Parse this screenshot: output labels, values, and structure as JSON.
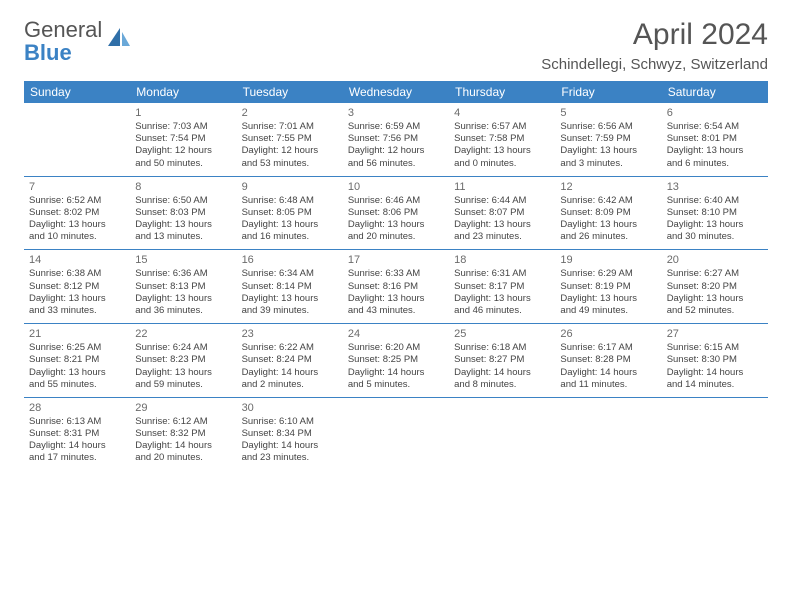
{
  "brand": {
    "line1": "General",
    "line2": "Blue"
  },
  "title": "April 2024",
  "location": "Schindellegi, Schwyz, Switzerland",
  "colors": {
    "header_bg": "#3b82c4",
    "header_text": "#ffffff",
    "text": "#444444",
    "title_text": "#555555",
    "border": "#3b82c4",
    "page_bg": "#ffffff"
  },
  "calendar": {
    "type": "table",
    "day_headers": [
      "Sunday",
      "Monday",
      "Tuesday",
      "Wednesday",
      "Thursday",
      "Friday",
      "Saturday"
    ],
    "header_fontsize": 12,
    "cell_fontsize": 9.5,
    "daynum_fontsize": 11,
    "weeks": [
      [
        null,
        {
          "n": "1",
          "sr": "Sunrise: 7:03 AM",
          "ss": "Sunset: 7:54 PM",
          "dl1": "Daylight: 12 hours",
          "dl2": "and 50 minutes."
        },
        {
          "n": "2",
          "sr": "Sunrise: 7:01 AM",
          "ss": "Sunset: 7:55 PM",
          "dl1": "Daylight: 12 hours",
          "dl2": "and 53 minutes."
        },
        {
          "n": "3",
          "sr": "Sunrise: 6:59 AM",
          "ss": "Sunset: 7:56 PM",
          "dl1": "Daylight: 12 hours",
          "dl2": "and 56 minutes."
        },
        {
          "n": "4",
          "sr": "Sunrise: 6:57 AM",
          "ss": "Sunset: 7:58 PM",
          "dl1": "Daylight: 13 hours",
          "dl2": "and 0 minutes."
        },
        {
          "n": "5",
          "sr": "Sunrise: 6:56 AM",
          "ss": "Sunset: 7:59 PM",
          "dl1": "Daylight: 13 hours",
          "dl2": "and 3 minutes."
        },
        {
          "n": "6",
          "sr": "Sunrise: 6:54 AM",
          "ss": "Sunset: 8:01 PM",
          "dl1": "Daylight: 13 hours",
          "dl2": "and 6 minutes."
        }
      ],
      [
        {
          "n": "7",
          "sr": "Sunrise: 6:52 AM",
          "ss": "Sunset: 8:02 PM",
          "dl1": "Daylight: 13 hours",
          "dl2": "and 10 minutes."
        },
        {
          "n": "8",
          "sr": "Sunrise: 6:50 AM",
          "ss": "Sunset: 8:03 PM",
          "dl1": "Daylight: 13 hours",
          "dl2": "and 13 minutes."
        },
        {
          "n": "9",
          "sr": "Sunrise: 6:48 AM",
          "ss": "Sunset: 8:05 PM",
          "dl1": "Daylight: 13 hours",
          "dl2": "and 16 minutes."
        },
        {
          "n": "10",
          "sr": "Sunrise: 6:46 AM",
          "ss": "Sunset: 8:06 PM",
          "dl1": "Daylight: 13 hours",
          "dl2": "and 20 minutes."
        },
        {
          "n": "11",
          "sr": "Sunrise: 6:44 AM",
          "ss": "Sunset: 8:07 PM",
          "dl1": "Daylight: 13 hours",
          "dl2": "and 23 minutes."
        },
        {
          "n": "12",
          "sr": "Sunrise: 6:42 AM",
          "ss": "Sunset: 8:09 PM",
          "dl1": "Daylight: 13 hours",
          "dl2": "and 26 minutes."
        },
        {
          "n": "13",
          "sr": "Sunrise: 6:40 AM",
          "ss": "Sunset: 8:10 PM",
          "dl1": "Daylight: 13 hours",
          "dl2": "and 30 minutes."
        }
      ],
      [
        {
          "n": "14",
          "sr": "Sunrise: 6:38 AM",
          "ss": "Sunset: 8:12 PM",
          "dl1": "Daylight: 13 hours",
          "dl2": "and 33 minutes."
        },
        {
          "n": "15",
          "sr": "Sunrise: 6:36 AM",
          "ss": "Sunset: 8:13 PM",
          "dl1": "Daylight: 13 hours",
          "dl2": "and 36 minutes."
        },
        {
          "n": "16",
          "sr": "Sunrise: 6:34 AM",
          "ss": "Sunset: 8:14 PM",
          "dl1": "Daylight: 13 hours",
          "dl2": "and 39 minutes."
        },
        {
          "n": "17",
          "sr": "Sunrise: 6:33 AM",
          "ss": "Sunset: 8:16 PM",
          "dl1": "Daylight: 13 hours",
          "dl2": "and 43 minutes."
        },
        {
          "n": "18",
          "sr": "Sunrise: 6:31 AM",
          "ss": "Sunset: 8:17 PM",
          "dl1": "Daylight: 13 hours",
          "dl2": "and 46 minutes."
        },
        {
          "n": "19",
          "sr": "Sunrise: 6:29 AM",
          "ss": "Sunset: 8:19 PM",
          "dl1": "Daylight: 13 hours",
          "dl2": "and 49 minutes."
        },
        {
          "n": "20",
          "sr": "Sunrise: 6:27 AM",
          "ss": "Sunset: 8:20 PM",
          "dl1": "Daylight: 13 hours",
          "dl2": "and 52 minutes."
        }
      ],
      [
        {
          "n": "21",
          "sr": "Sunrise: 6:25 AM",
          "ss": "Sunset: 8:21 PM",
          "dl1": "Daylight: 13 hours",
          "dl2": "and 55 minutes."
        },
        {
          "n": "22",
          "sr": "Sunrise: 6:24 AM",
          "ss": "Sunset: 8:23 PM",
          "dl1": "Daylight: 13 hours",
          "dl2": "and 59 minutes."
        },
        {
          "n": "23",
          "sr": "Sunrise: 6:22 AM",
          "ss": "Sunset: 8:24 PM",
          "dl1": "Daylight: 14 hours",
          "dl2": "and 2 minutes."
        },
        {
          "n": "24",
          "sr": "Sunrise: 6:20 AM",
          "ss": "Sunset: 8:25 PM",
          "dl1": "Daylight: 14 hours",
          "dl2": "and 5 minutes."
        },
        {
          "n": "25",
          "sr": "Sunrise: 6:18 AM",
          "ss": "Sunset: 8:27 PM",
          "dl1": "Daylight: 14 hours",
          "dl2": "and 8 minutes."
        },
        {
          "n": "26",
          "sr": "Sunrise: 6:17 AM",
          "ss": "Sunset: 8:28 PM",
          "dl1": "Daylight: 14 hours",
          "dl2": "and 11 minutes."
        },
        {
          "n": "27",
          "sr": "Sunrise: 6:15 AM",
          "ss": "Sunset: 8:30 PM",
          "dl1": "Daylight: 14 hours",
          "dl2": "and 14 minutes."
        }
      ],
      [
        {
          "n": "28",
          "sr": "Sunrise: 6:13 AM",
          "ss": "Sunset: 8:31 PM",
          "dl1": "Daylight: 14 hours",
          "dl2": "and 17 minutes."
        },
        {
          "n": "29",
          "sr": "Sunrise: 6:12 AM",
          "ss": "Sunset: 8:32 PM",
          "dl1": "Daylight: 14 hours",
          "dl2": "and 20 minutes."
        },
        {
          "n": "30",
          "sr": "Sunrise: 6:10 AM",
          "ss": "Sunset: 8:34 PM",
          "dl1": "Daylight: 14 hours",
          "dl2": "and 23 minutes."
        },
        null,
        null,
        null,
        null
      ]
    ]
  }
}
